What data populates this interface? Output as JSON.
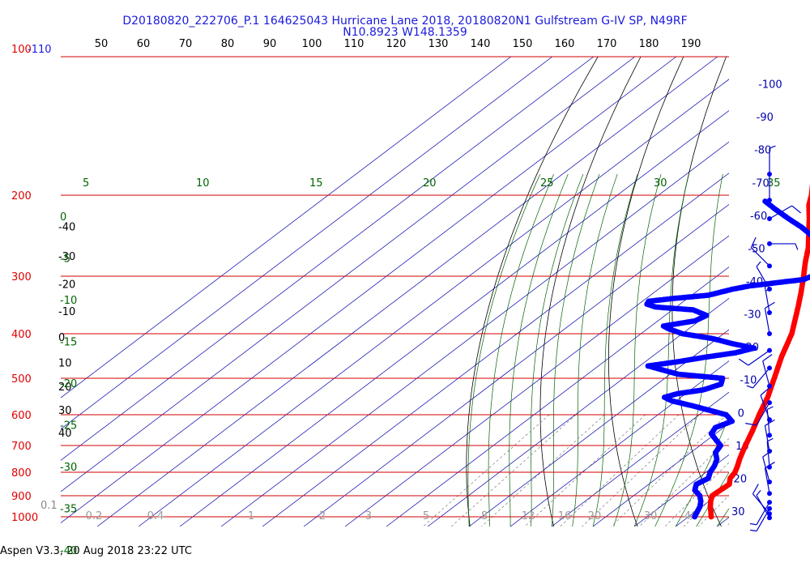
{
  "chart_data": {
    "type": "skew-t log-p sounding",
    "title_line1": "D20180820_222706_P.1 164625043 Hurricane Lane 2018, 20180820N1 Gulfstream G-IV SP, N49RF",
    "title_line2": "N10.8923 W148.1359",
    "footer": "Aspen V3.3, 20 Aug 2018  23:22 UTC",
    "pressure_axis": {
      "top_label_red": "100",
      "top_label_blue": "-110",
      "labels": [
        "200",
        "300",
        "400",
        "500",
        "600",
        "700",
        "800",
        "900",
        "1000"
      ]
    },
    "height_labels": [
      "40",
      "30",
      "20",
      "10",
      "0",
      "-10",
      "-20",
      "-30",
      "-40"
    ],
    "top_axis_labels": [
      "50",
      "60",
      "70",
      "80",
      "90",
      "100",
      "110",
      "120",
      "130",
      "140",
      "150",
      "160",
      "170",
      "180",
      "190"
    ],
    "isotherm_labels": [
      "-100",
      "-90",
      "-80",
      "-70",
      "-60",
      "-50",
      "-40",
      "-30",
      "-20",
      "-10",
      "0",
      "10",
      "20",
      "30"
    ],
    "dry_adiabat_labels": [
      "5",
      "10",
      "15",
      "20",
      "25",
      "30",
      "35"
    ],
    "moist_adiabat_labels": [
      "0",
      "-5",
      "-10",
      "-15",
      "-20",
      "-25",
      "-30",
      "-35",
      "-40"
    ],
    "mixing_ratio_labels": [
      "0.1",
      "0.2",
      "0.4",
      "1",
      "2",
      "3",
      "5",
      "8",
      "12",
      "16",
      "20",
      "30",
      "40"
    ],
    "colors": {
      "temperature": "#ff0000",
      "dewpoint": "#0000ff",
      "isobar": "#d00000",
      "isotherm": "#0000aa",
      "dry_adiabat": "#000000",
      "moist_adiabat": "#006400",
      "mixing_ratio": "#777777",
      "title": "#1a1adb"
    },
    "temperature_profile": [
      {
        "p": 1000,
        "t": 25.5
      },
      {
        "p": 975,
        "t": 23.8
      },
      {
        "p": 950,
        "t": 22.0
      },
      {
        "p": 925,
        "t": 20.4
      },
      {
        "p": 900,
        "t": 19.0
      },
      {
        "p": 875,
        "t": 19.2
      },
      {
        "p": 850,
        "t": 19.5
      },
      {
        "p": 825,
        "t": 17.8
      },
      {
        "p": 800,
        "t": 17.0
      },
      {
        "p": 775,
        "t": 15.6
      },
      {
        "p": 750,
        "t": 14.0
      },
      {
        "p": 725,
        "t": 12.5
      },
      {
        "p": 700,
        "t": 11.0
      },
      {
        "p": 650,
        "t": 8.0
      },
      {
        "p": 600,
        "t": 4.5
      },
      {
        "p": 550,
        "t": 1.0
      },
      {
        "p": 500,
        "t": -3.5
      },
      {
        "p": 450,
        "t": -8.5
      },
      {
        "p": 400,
        "t": -13.5
      },
      {
        "p": 350,
        "t": -20.5
      },
      {
        "p": 325,
        "t": -24.5
      },
      {
        "p": 300,
        "t": -29.0
      },
      {
        "p": 280,
        "t": -33.0
      },
      {
        "p": 260,
        "t": -37.0
      },
      {
        "p": 240,
        "t": -42.0
      },
      {
        "p": 225,
        "t": -46.0
      },
      {
        "p": 210,
        "t": -50.5
      },
      {
        "p": 200,
        "t": -53.0
      },
      {
        "p": 190,
        "t": -56.0
      },
      {
        "p": 180,
        "t": -59.0
      }
    ],
    "temperature_top_point": {
      "p": 150,
      "t": -62.0
    },
    "dewpoint_profile": [
      {
        "p": 1000,
        "t": 21.5
      },
      {
        "p": 975,
        "t": 20.5
      },
      {
        "p": 950,
        "t": 19.5
      },
      {
        "p": 925,
        "t": 18.0
      },
      {
        "p": 900,
        "t": 16.0
      },
      {
        "p": 875,
        "t": 13.0
      },
      {
        "p": 850,
        "t": 11.5
      },
      {
        "p": 825,
        "t": 12.5
      },
      {
        "p": 800,
        "t": 11.0
      },
      {
        "p": 775,
        "t": 10.0
      },
      {
        "p": 750,
        "t": 8.5
      },
      {
        "p": 725,
        "t": 6.0
      },
      {
        "p": 700,
        "t": 5.0
      },
      {
        "p": 680,
        "t": 2.0
      },
      {
        "p": 660,
        "t": -1.0
      },
      {
        "p": 640,
        "t": -2.0
      },
      {
        "p": 620,
        "t": 0.0
      },
      {
        "p": 600,
        "t": -3.5
      },
      {
        "p": 575,
        "t": -14.0
      },
      {
        "p": 560,
        "t": -21.0
      },
      {
        "p": 550,
        "t": -24.0
      },
      {
        "p": 540,
        "t": -22.0
      },
      {
        "p": 530,
        "t": -17.0
      },
      {
        "p": 515,
        "t": -14.5
      },
      {
        "p": 500,
        "t": -16.0
      },
      {
        "p": 490,
        "t": -28.0
      },
      {
        "p": 480,
        "t": -33.0
      },
      {
        "p": 470,
        "t": -38.0
      },
      {
        "p": 460,
        "t": -32.0
      },
      {
        "p": 450,
        "t": -27.0
      },
      {
        "p": 440,
        "t": -21.0
      },
      {
        "p": 430,
        "t": -18.0
      },
      {
        "p": 420,
        "t": -25.0
      },
      {
        "p": 410,
        "t": -31.0
      },
      {
        "p": 400,
        "t": -40.0
      },
      {
        "p": 390,
        "t": -45.0
      },
      {
        "p": 385,
        "t": -47.0
      },
      {
        "p": 375,
        "t": -41.0
      },
      {
        "p": 365,
        "t": -40.0
      },
      {
        "p": 355,
        "t": -45.0
      },
      {
        "p": 350,
        "t": -55.0
      },
      {
        "p": 345,
        "t": -58.0
      },
      {
        "p": 340,
        "t": -58.5
      },
      {
        "p": 335,
        "t": -53.0
      },
      {
        "p": 330,
        "t": -46.0
      },
      {
        "p": 320,
        "t": -42.0
      },
      {
        "p": 315,
        "t": -39.0
      },
      {
        "p": 305,
        "t": -28.0
      },
      {
        "p": 295,
        "t": -26.0
      },
      {
        "p": 285,
        "t": -27.5
      },
      {
        "p": 270,
        "t": -31.0
      },
      {
        "p": 250,
        "t": -37.5
      },
      {
        "p": 235,
        "t": -45.0
      },
      {
        "p": 225,
        "t": -51.0
      },
      {
        "p": 215,
        "t": -57.0
      },
      {
        "p": 205,
        "t": -63.0
      }
    ],
    "wind_barbs": [
      {
        "p": 180,
        "dir": 360,
        "speed": 5
      },
      {
        "p": 205,
        "dir": 360,
        "speed": 0
      },
      {
        "p": 225,
        "dir": 60,
        "speed": 10
      },
      {
        "p": 255,
        "dir": 90,
        "speed": 5
      },
      {
        "p": 285,
        "dir": 315,
        "speed": 10
      },
      {
        "p": 320,
        "dir": 330,
        "speed": 5
      },
      {
        "p": 360,
        "dir": 350,
        "speed": 15
      },
      {
        "p": 400,
        "dir": 350,
        "speed": 10
      },
      {
        "p": 435,
        "dir": 235,
        "speed": 10
      },
      {
        "p": 475,
        "dir": 220,
        "speed": 5
      },
      {
        "p": 520,
        "dir": 345,
        "speed": 10
      },
      {
        "p": 565,
        "dir": 210,
        "speed": 10
      },
      {
        "p": 615,
        "dir": 340,
        "speed": 10
      },
      {
        "p": 665,
        "dir": 355,
        "speed": 5
      },
      {
        "p": 720,
        "dir": 350,
        "speed": 10
      },
      {
        "p": 780,
        "dir": 355,
        "speed": 5
      },
      {
        "p": 840,
        "dir": 345,
        "speed": 10
      },
      {
        "p": 890,
        "dir": 350,
        "speed": 10
      },
      {
        "p": 930,
        "dir": 210,
        "speed": 5
      },
      {
        "p": 960,
        "dir": 210,
        "speed": 5
      },
      {
        "p": 985,
        "dir": 320,
        "speed": 10
      },
      {
        "p": 1005,
        "dir": 330,
        "speed": 5
      }
    ]
  }
}
